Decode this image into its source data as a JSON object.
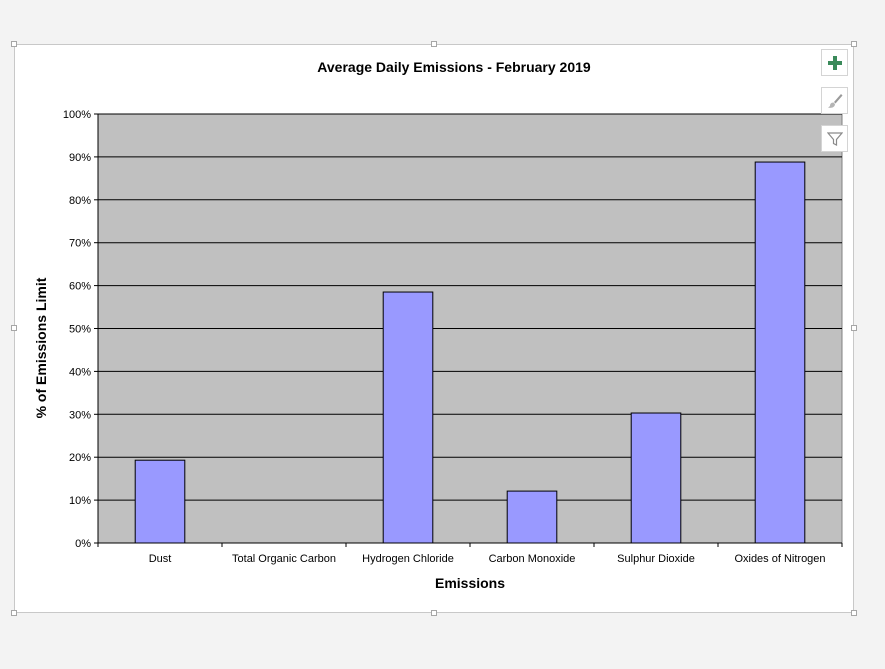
{
  "chart_data": {
    "type": "bar",
    "title": "Average Daily Emissions - February 2019",
    "xlabel": "Emissions",
    "ylabel": "% of Emissions Limit",
    "categories": [
      "Dust",
      "Total Organic Carbon",
      "Hydrogen Chloride",
      "Carbon Monoxide",
      "Sulphur Dioxide",
      "Oxides of Nitrogen"
    ],
    "values": [
      19.3,
      0,
      58.5,
      12.1,
      30.3,
      88.8
    ],
    "ylim": [
      0,
      100
    ],
    "yticks": [
      "0%",
      "10%",
      "20%",
      "30%",
      "40%",
      "50%",
      "60%",
      "70%",
      "80%",
      "90%",
      "100%"
    ],
    "grid": true,
    "legend": "none",
    "colors": {
      "bar_fill": "#9999ff",
      "bar_stroke": "#000000",
      "plot_background": "#c0c0c0",
      "gridline": "#000000"
    }
  },
  "chart_tools": {
    "add_icon": "plus-icon",
    "style_icon": "brush-icon",
    "filter_icon": "filter-icon",
    "add_color": "#3a8a5a"
  }
}
